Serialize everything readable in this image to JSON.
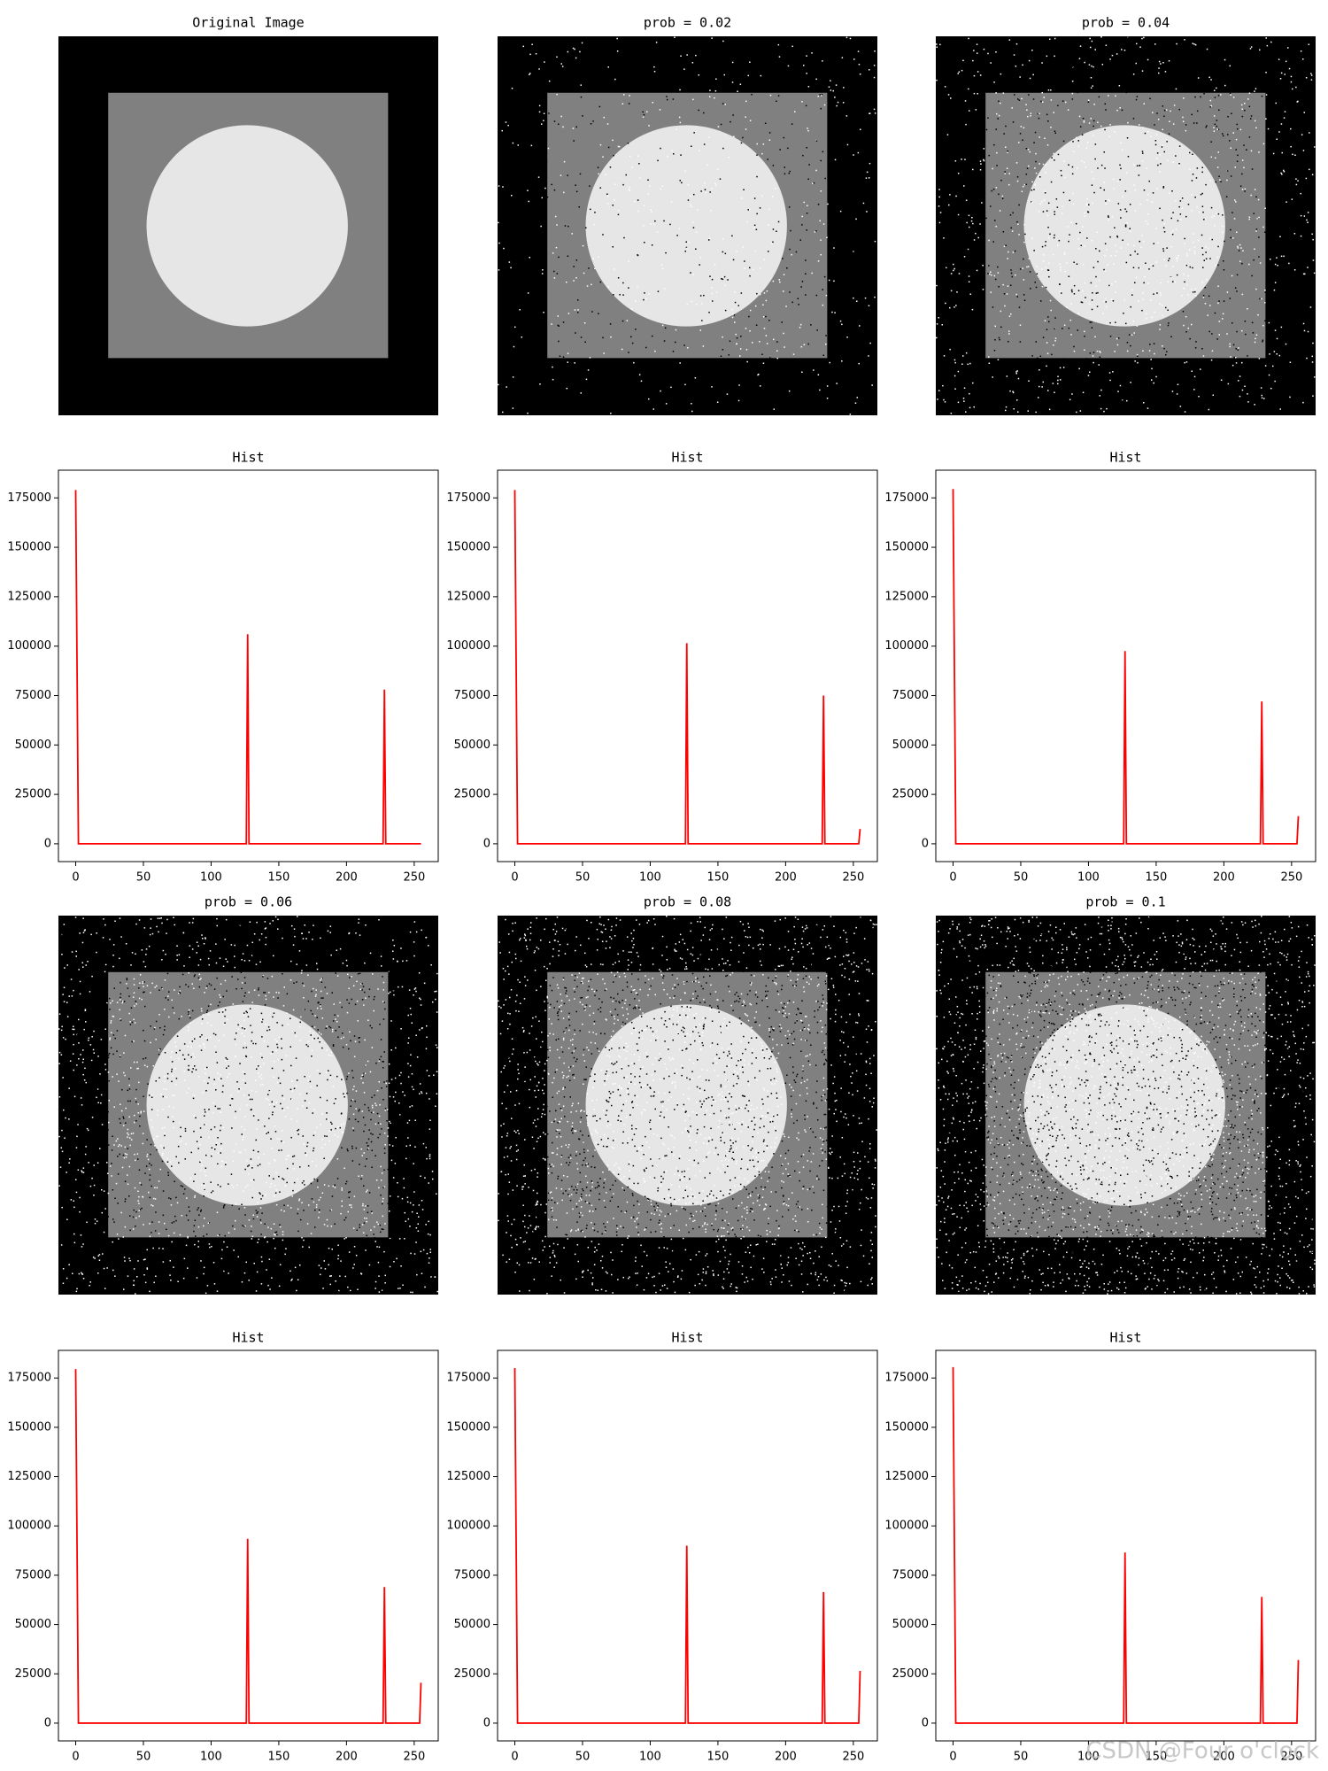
{
  "images": [
    {
      "title": "Original Image"
    },
    {
      "title": "prob = 0.02"
    },
    {
      "title": "prob = 0.04"
    },
    {
      "title": "prob = 0.06"
    },
    {
      "title": "prob = 0.08"
    },
    {
      "title": "prob = 0.1"
    }
  ],
  "chart_data": [
    {
      "type": "line",
      "title": "Hist",
      "color": "red",
      "x": [
        0,
        2,
        126,
        127,
        128,
        227,
        228,
        229,
        254,
        255
      ],
      "values": [
        179000,
        0,
        0,
        106000,
        0,
        0,
        78000,
        0,
        0,
        0
      ],
      "xlim": [
        -12.75,
        267.75
      ],
      "ylim": [
        -9000,
        189000
      ],
      "xticks": [
        0,
        50,
        100,
        150,
        200,
        250
      ],
      "yticks": [
        0,
        25000,
        50000,
        75000,
        100000,
        125000,
        150000,
        175000
      ]
    },
    {
      "type": "line",
      "title": "Hist",
      "color": "red",
      "x": [
        0,
        2,
        126,
        127,
        128,
        227,
        228,
        229,
        254,
        255
      ],
      "values": [
        179000,
        0,
        0,
        101500,
        0,
        0,
        75000,
        0,
        0,
        7500
      ],
      "xlim": [
        -12.75,
        267.75
      ],
      "ylim": [
        -9000,
        189000
      ],
      "xticks": [
        0,
        50,
        100,
        150,
        200,
        250
      ],
      "yticks": [
        0,
        25000,
        50000,
        75000,
        100000,
        125000,
        150000,
        175000
      ]
    },
    {
      "type": "line",
      "title": "Hist",
      "color": "red",
      "x": [
        0,
        2,
        126,
        127,
        128,
        227,
        228,
        229,
        254,
        255
      ],
      "values": [
        179500,
        0,
        0,
        97500,
        0,
        0,
        72000,
        0,
        0,
        14000
      ],
      "xlim": [
        -12.75,
        267.75
      ],
      "ylim": [
        -9000,
        189000
      ],
      "xticks": [
        0,
        50,
        100,
        150,
        200,
        250
      ],
      "yticks": [
        0,
        25000,
        50000,
        75000,
        100000,
        125000,
        150000,
        175000
      ]
    },
    {
      "type": "line",
      "title": "Hist",
      "color": "red",
      "x": [
        0,
        2,
        126,
        127,
        128,
        227,
        228,
        229,
        254,
        255
      ],
      "values": [
        179500,
        0,
        0,
        93500,
        0,
        0,
        69000,
        0,
        0,
        20500
      ],
      "xlim": [
        -12.75,
        267.75
      ],
      "ylim": [
        -9000,
        189000
      ],
      "xticks": [
        0,
        50,
        100,
        150,
        200,
        250
      ],
      "yticks": [
        0,
        25000,
        50000,
        75000,
        100000,
        125000,
        150000,
        175000
      ]
    },
    {
      "type": "line",
      "title": "Hist",
      "color": "red",
      "x": [
        0,
        2,
        126,
        127,
        128,
        227,
        228,
        229,
        254,
        255
      ],
      "values": [
        180000,
        0,
        0,
        90000,
        0,
        0,
        66500,
        0,
        0,
        26500
      ],
      "xlim": [
        -12.75,
        267.75
      ],
      "ylim": [
        -9000,
        189000
      ],
      "xticks": [
        0,
        50,
        100,
        150,
        200,
        250
      ],
      "yticks": [
        0,
        25000,
        50000,
        75000,
        100000,
        125000,
        150000,
        175000
      ]
    },
    {
      "type": "line",
      "title": "Hist",
      "color": "red",
      "x": [
        0,
        2,
        126,
        127,
        128,
        227,
        228,
        229,
        254,
        255
      ],
      "values": [
        180500,
        0,
        0,
        86500,
        0,
        0,
        64000,
        0,
        0,
        32000
      ],
      "xlim": [
        -12.75,
        267.75
      ],
      "ylim": [
        -9000,
        189000
      ],
      "xticks": [
        0,
        50,
        100,
        150,
        200,
        250
      ],
      "yticks": [
        0,
        25000,
        50000,
        75000,
        100000,
        125000,
        150000,
        175000
      ]
    }
  ],
  "watermark": "CSDN @Four o'clock"
}
